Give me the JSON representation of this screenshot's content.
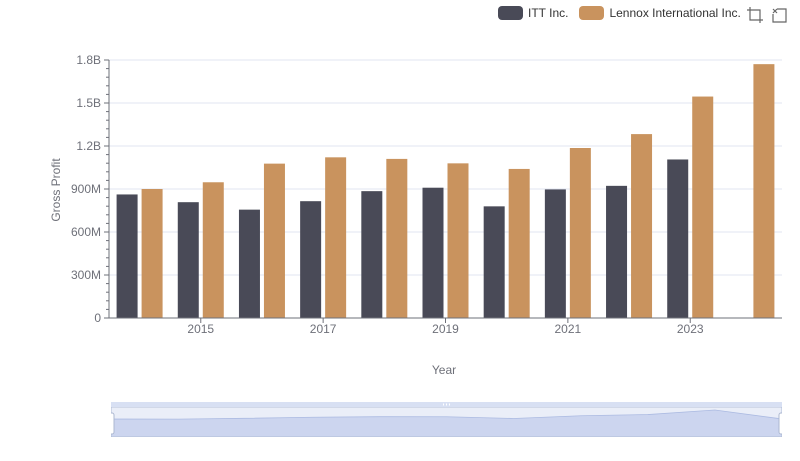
{
  "legend": {
    "items": [
      {
        "label": "ITT Inc.",
        "color": "#494a57"
      },
      {
        "label": "Lennox International Inc.",
        "color": "#c9935e"
      }
    ]
  },
  "toolbox": {
    "icons": [
      "zoom-icon",
      "zoom-reset-icon"
    ]
  },
  "chart_data": {
    "type": "bar",
    "x": [
      2014,
      2015,
      2016,
      2017,
      2018,
      2019,
      2020,
      2021,
      2022,
      2023,
      2024
    ],
    "tick_labels": [
      "2015",
      "2017",
      "2019",
      "2021",
      "2023"
    ],
    "series": [
      {
        "name": "ITT Inc.",
        "color": "#494a57",
        "values": [
          862000000,
          808000000,
          756000000,
          815000000,
          885000000,
          909000000,
          779000000,
          897000000,
          922000000,
          1106000000,
          null
        ]
      },
      {
        "name": "Lennox International Inc.",
        "color": "#c9935e",
        "values": [
          900000000,
          947000000,
          1077000000,
          1121000000,
          1110000000,
          1079000000,
          1040000000,
          1186000000,
          1283000000,
          1545000000,
          1771000000
        ]
      }
    ],
    "xlabel": "Year",
    "ylabel": "Gross Profit",
    "y_ticks": [
      "0",
      "300M",
      "600M",
      "900M",
      "1.2B",
      "1.5B",
      "1.8B"
    ],
    "ylim": [
      0,
      1800000000
    ],
    "grid": true,
    "legend_position": "top-right",
    "data_zoom": {
      "range_percent": [
        0,
        100
      ]
    }
  }
}
